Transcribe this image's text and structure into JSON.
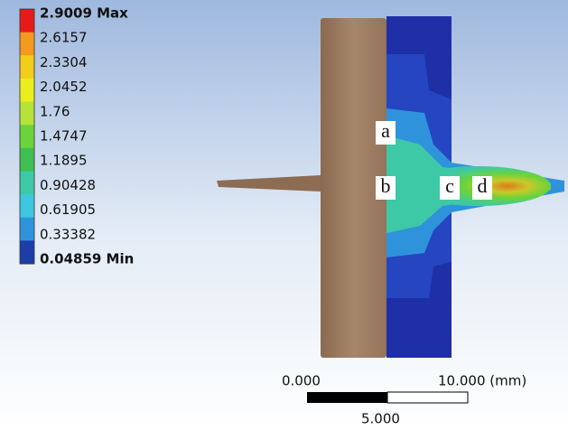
{
  "legend": {
    "levels": [
      "2.9009 Max",
      "2.6157",
      "2.3304",
      "2.0452",
      "1.76",
      "1.4747",
      "1.1895",
      "0.90428",
      "0.61905",
      "0.33382",
      "0.04859 Min"
    ],
    "colors": [
      "#e8191a",
      "#f39a1f",
      "#f2cd19",
      "#e9ee1c",
      "#b6e23a",
      "#6cd33a",
      "#3fbe52",
      "#3ec9a6",
      "#3ec6de",
      "#2f93dc",
      "#1d3ea9"
    ]
  },
  "points": [
    "a",
    "b",
    "c",
    "d"
  ],
  "scale": {
    "start": "0.000",
    "end": "10.000 (mm)",
    "middle": "5.000"
  }
}
